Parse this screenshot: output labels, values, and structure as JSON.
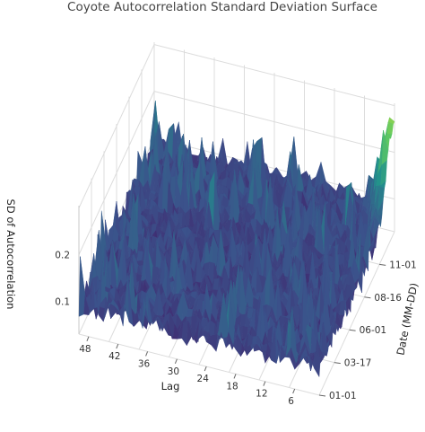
{
  "chart_data": {
    "type": "surface",
    "title": "Coyote Autocorrelation Standard Deviation Surface",
    "x_axis": {
      "label": "Lag",
      "ticks": [
        "48",
        "42",
        "36",
        "30",
        "24",
        "18",
        "12",
        "6"
      ],
      "range": [
        1,
        50
      ]
    },
    "y_axis": {
      "label": "Date (MM-DD)",
      "ticks": [
        "01-01",
        "03-17",
        "06-01",
        "08-16",
        "11-01"
      ]
    },
    "z_axis": {
      "label": "SD of Autocorrelation",
      "ticks": [
        "0.1",
        "0.2"
      ],
      "range": [
        0.03,
        0.28
      ]
    },
    "colorscale": "viridis",
    "surface_summary": {
      "baseline": 0.09,
      "typical_peak": 0.17,
      "max_peak": 0.27,
      "max_peak_location": "lag 1, date ~12-31"
    }
  }
}
